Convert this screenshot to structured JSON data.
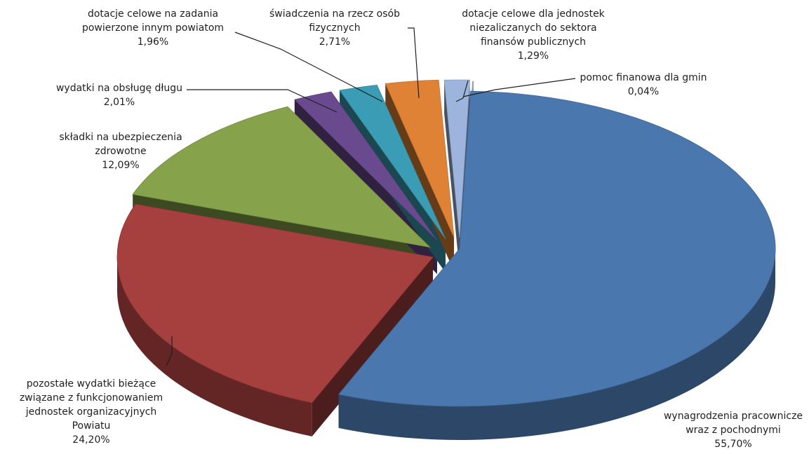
{
  "chart_data": {
    "type": "pie",
    "title": "",
    "slices": [
      {
        "label_lines": [
          "wynagrodzenia pracownicze",
          "wraz z pochodnymi"
        ],
        "value_label": "55,70%",
        "value": 55.7,
        "color": "#4A77AE"
      },
      {
        "label_lines": [
          "pozostałe wydatki bieżące",
          "związane z funkcjonowaniem",
          "jednostek organizacyjnych",
          "Powiatu"
        ],
        "value_label": "24,20%",
        "value": 24.2,
        "color": "#A6403E"
      },
      {
        "label_lines": [
          "składki na ubezpieczenia",
          "zdrowotne"
        ],
        "value_label": "12,09%",
        "value": 12.09,
        "color": "#86A24A"
      },
      {
        "label_lines": [
          "wydatki na obsługę długu"
        ],
        "value_label": "2,01%",
        "value": 2.01,
        "color": "#6A4A8E"
      },
      {
        "label_lines": [
          "dotacje celowe na zadania",
          "powierzone innym powiatom"
        ],
        "value_label": "1,96%",
        "value": 1.96,
        "color": "#3B9DB5"
      },
      {
        "label_lines": [
          "świadczenia na rzecz osób",
          "fizycznych"
        ],
        "value_label": "2,71%",
        "value": 2.71,
        "color": "#E08236"
      },
      {
        "label_lines": [
          "dotacje celowe dla jednostek",
          "niezaliczanych do sektora",
          "finansów publicznych"
        ],
        "value_label": "1,29%",
        "value": 1.29,
        "color": "#9DB5DC"
      },
      {
        "label_lines": [
          "pomoc finanowa dla gmin"
        ],
        "value_label": "0,04%",
        "value": 0.04,
        "color": "#B0B0B0"
      }
    ],
    "style": "3d-exploded"
  }
}
